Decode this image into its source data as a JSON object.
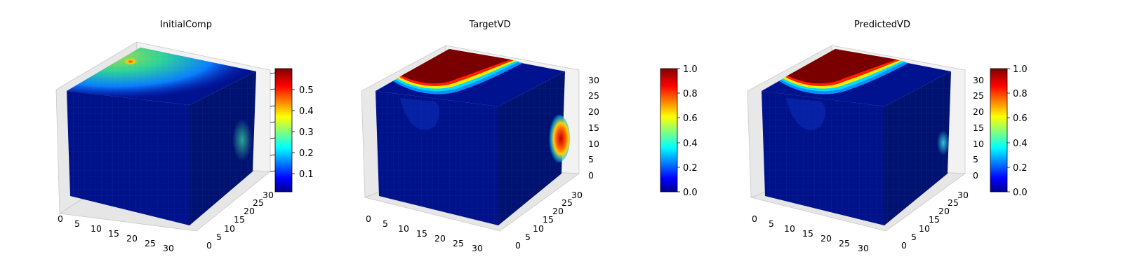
{
  "chart_data": [
    {
      "type": "heatmap",
      "title": "InitialComp",
      "x_ticks": [
        "0",
        "5",
        "10",
        "15",
        "20",
        "25",
        "30"
      ],
      "y_ticks": [
        "0",
        "5",
        "10",
        "15",
        "20",
        "25",
        "30"
      ],
      "z_ticks": [],
      "colormap": "jet",
      "colorbar": {
        "ticks": [
          "0.1",
          "0.2",
          "0.3",
          "0.4",
          "0.5"
        ],
        "range": [
          0.02,
          0.59
        ]
      },
      "surface": "blue volume with a green-cyan elevated region on the top face peaking near 0.55 at the back-left corner",
      "grid": true
    },
    {
      "type": "heatmap",
      "title": "TargetVD",
      "x_ticks": [
        "0",
        "5",
        "10",
        "15",
        "20",
        "25",
        "30"
      ],
      "y_ticks": [
        "0",
        "5",
        "10",
        "15",
        "20",
        "25",
        "30"
      ],
      "z_ticks": [
        "0",
        "5",
        "10",
        "15",
        "20",
        "25",
        "30"
      ],
      "colormap": "jet",
      "colorbar": {
        "ticks": [
          "0.0",
          "0.2",
          "0.4",
          "0.6",
          "0.8",
          "1.0"
        ],
        "range": [
          0.0,
          1.0
        ]
      },
      "surface": "top face saturated at 1.0 in the back region with a sharp rainbow boundary; red spot near z=10 on the right face",
      "grid": true
    },
    {
      "type": "heatmap",
      "title": "PredictedVD",
      "x_ticks": [
        "0",
        "5",
        "10",
        "15",
        "20",
        "25",
        "30"
      ],
      "y_ticks": [
        "0",
        "5",
        "10",
        "15",
        "20",
        "25",
        "30"
      ],
      "z_ticks": [
        "0",
        "5",
        "10",
        "15",
        "20",
        "25",
        "30"
      ],
      "colormap": "jet",
      "colorbar": {
        "ticks": [
          "0.0",
          "0.2",
          "0.4",
          "0.6",
          "0.8",
          "1.0"
        ],
        "range": [
          0.0,
          1.0
        ]
      },
      "surface": "top face saturated at 1.0 in the back region with a sharp rainbow boundary; faint cyan spot on the right face",
      "grid": true
    }
  ],
  "colors": {
    "background": "#ffffff",
    "pane": "#ebebeb",
    "cube_base": "#00008f"
  }
}
